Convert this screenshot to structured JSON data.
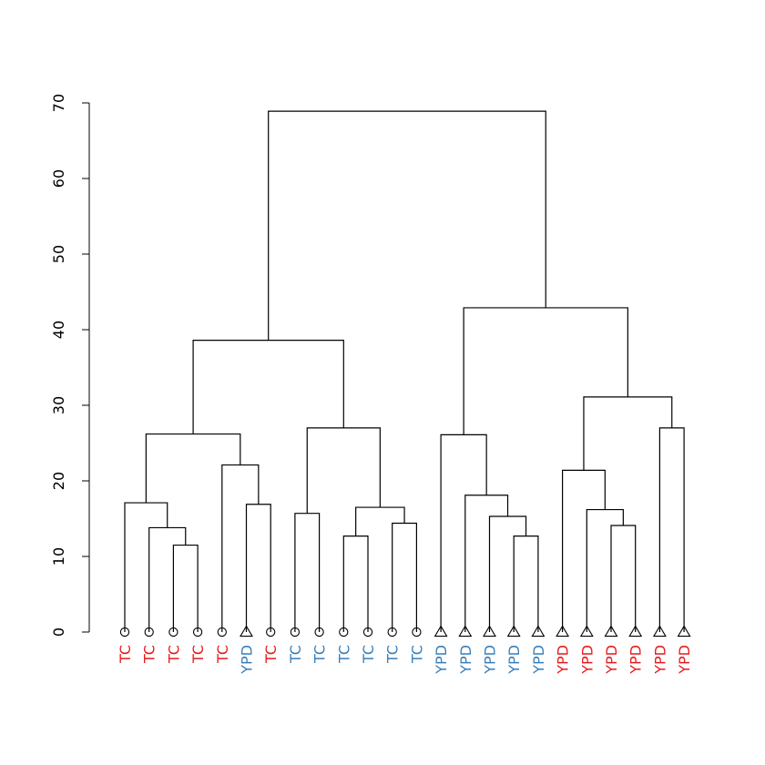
{
  "chart_data": {
    "type": "dendrogram",
    "title": "",
    "xlabel": "",
    "ylabel": "",
    "ylim": [
      0,
      70
    ],
    "y_ticks": [
      0,
      10,
      20,
      30,
      40,
      50,
      60,
      70
    ],
    "y_tick_labels": [
      "0",
      "10",
      "20",
      "30",
      "40",
      "50",
      "60",
      "70"
    ],
    "colors": {
      "red": "#e41a1c",
      "blue": "#377eb8"
    },
    "leaves": [
      {
        "label": "TC",
        "color": "red",
        "marker": "circle"
      },
      {
        "label": "TC",
        "color": "red",
        "marker": "circle"
      },
      {
        "label": "TC",
        "color": "red",
        "marker": "circle"
      },
      {
        "label": "TC",
        "color": "red",
        "marker": "circle"
      },
      {
        "label": "TC",
        "color": "red",
        "marker": "circle"
      },
      {
        "label": "YPD",
        "color": "blue",
        "marker": "triangle"
      },
      {
        "label": "TC",
        "color": "red",
        "marker": "circle"
      },
      {
        "label": "TC",
        "color": "blue",
        "marker": "circle"
      },
      {
        "label": "TC",
        "color": "blue",
        "marker": "circle"
      },
      {
        "label": "TC",
        "color": "blue",
        "marker": "circle"
      },
      {
        "label": "TC",
        "color": "blue",
        "marker": "circle"
      },
      {
        "label": "TC",
        "color": "blue",
        "marker": "circle"
      },
      {
        "label": "TC",
        "color": "blue",
        "marker": "circle"
      },
      {
        "label": "YPD",
        "color": "blue",
        "marker": "triangle"
      },
      {
        "label": "YPD",
        "color": "blue",
        "marker": "triangle"
      },
      {
        "label": "YPD",
        "color": "blue",
        "marker": "triangle"
      },
      {
        "label": "YPD",
        "color": "blue",
        "marker": "triangle"
      },
      {
        "label": "YPD",
        "color": "blue",
        "marker": "triangle"
      },
      {
        "label": "YPD",
        "color": "red",
        "marker": "triangle"
      },
      {
        "label": "YPD",
        "color": "red",
        "marker": "triangle"
      },
      {
        "label": "YPD",
        "color": "red",
        "marker": "triangle"
      },
      {
        "label": "YPD",
        "color": "red",
        "marker": "triangle"
      },
      {
        "label": "YPD",
        "color": "red",
        "marker": "triangle"
      },
      {
        "label": "YPD",
        "color": "red",
        "marker": "triangle"
      }
    ],
    "merges": [
      {
        "left": 2,
        "right": 3,
        "height": 11.5
      },
      {
        "left": 1,
        "right": "m0",
        "height": 13.8
      },
      {
        "left": 0,
        "right": "m1",
        "height": 17.1
      },
      {
        "left": 5,
        "right": 6,
        "height": 16.9
      },
      {
        "left": 4,
        "right": "m3",
        "height": 22.1
      },
      {
        "left": "m2",
        "right": "m4",
        "height": 26.2
      },
      {
        "left": 7,
        "right": 8,
        "height": 15.7
      },
      {
        "left": 9,
        "right": 10,
        "height": 12.7
      },
      {
        "left": 11,
        "right": 12,
        "height": 14.4
      },
      {
        "left": "m7",
        "right": "m8",
        "height": 16.5
      },
      {
        "left": "m6",
        "right": "m9",
        "height": 27.0
      },
      {
        "left": "m5",
        "right": "m10",
        "height": 38.6
      },
      {
        "left": 16,
        "right": 17,
        "height": 12.7
      },
      {
        "left": 15,
        "right": "m12",
        "height": 15.3
      },
      {
        "left": 14,
        "right": "m13",
        "height": 18.1
      },
      {
        "left": 13,
        "right": "m14",
        "height": 26.1
      },
      {
        "left": 20,
        "right": 21,
        "height": 14.1
      },
      {
        "left": 19,
        "right": "m16",
        "height": 16.2
      },
      {
        "left": 18,
        "right": "m17",
        "height": 21.4
      },
      {
        "left": 22,
        "right": 23,
        "height": 27.0
      },
      {
        "left": "m18",
        "right": "m19",
        "height": 31.1
      },
      {
        "left": "m15",
        "right": "m20",
        "height": 42.9
      },
      {
        "left": "m11",
        "right": "m21",
        "height": 68.9
      }
    ]
  }
}
